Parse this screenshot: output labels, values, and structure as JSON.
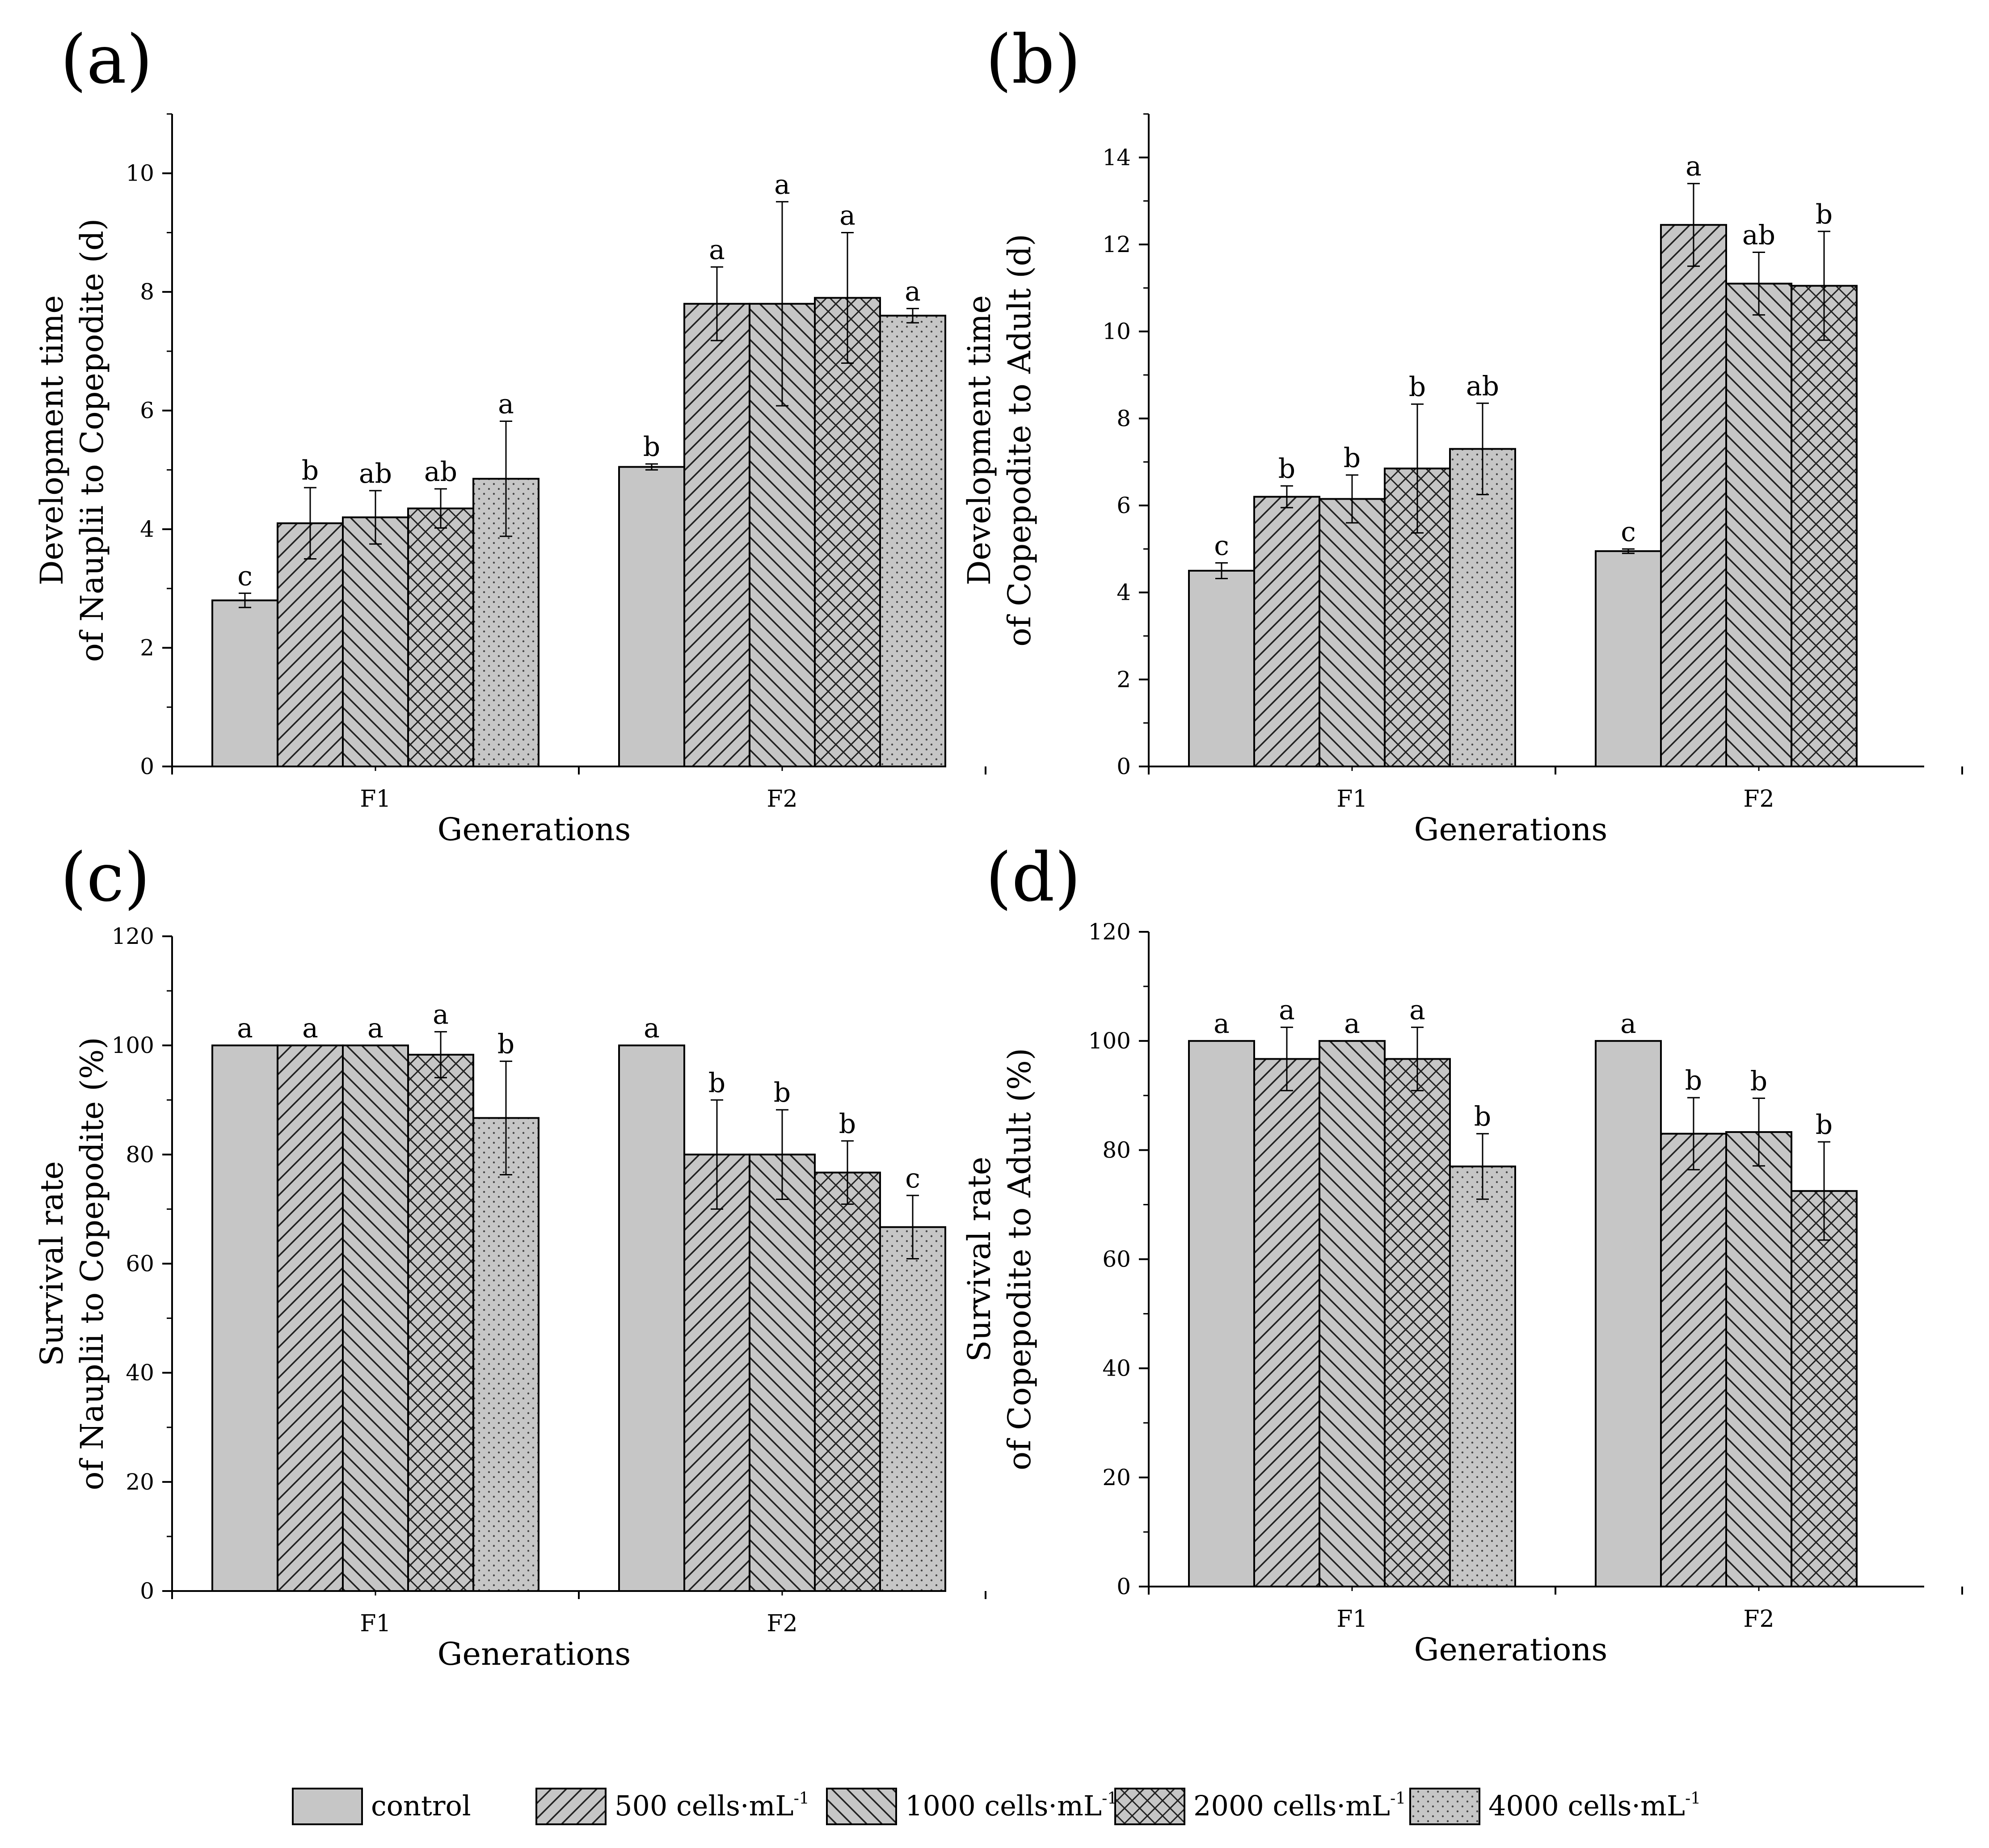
{
  "figure": {
    "legend": [
      {
        "key": "control",
        "label": "control",
        "sup": ""
      },
      {
        "key": "c500",
        "label": "500 cells·mL",
        "sup": "-1"
      },
      {
        "key": "c1000",
        "label": "1000 cells·mL",
        "sup": "-1"
      },
      {
        "key": "c2000",
        "label": "2000 cells·mL",
        "sup": "-1"
      },
      {
        "key": "c4000",
        "label": "4000 cells·mL",
        "sup": "-1"
      }
    ]
  },
  "chart_data": [
    {
      "panel": "(a)",
      "type": "bar",
      "title": "",
      "xlabel": "Generations",
      "ylabel": [
        "Development time",
        "of Nauplii to Copepodite (d)"
      ],
      "ylim": [
        0,
        11
      ],
      "yticks": [
        0,
        2,
        4,
        6,
        8,
        10
      ],
      "categories": [
        "F1",
        "F2"
      ],
      "series": [
        {
          "name": "control",
          "pattern": "solid",
          "values": [
            2.8,
            5.05
          ],
          "errors": [
            0.12,
            0.05
          ],
          "labels": [
            "c",
            "b"
          ]
        },
        {
          "name": "500 cells·mL-1",
          "pattern": "diag-right",
          "values": [
            4.1,
            7.8
          ],
          "errors": [
            0.6,
            0.62
          ],
          "labels": [
            "b",
            "a"
          ]
        },
        {
          "name": "1000 cells·mL-1",
          "pattern": "diag-left",
          "values": [
            4.2,
            7.8
          ],
          "errors": [
            0.45,
            1.72
          ],
          "labels": [
            "ab",
            "a"
          ]
        },
        {
          "name": "2000 cells·mL-1",
          "pattern": "crosshatch",
          "values": [
            4.35,
            7.9
          ],
          "errors": [
            0.33,
            1.1
          ],
          "labels": [
            "ab",
            "a"
          ]
        },
        {
          "name": "4000 cells·mL-1",
          "pattern": "dots",
          "values": [
            4.85,
            7.6
          ],
          "errors": [
            0.97,
            0.12
          ],
          "labels": [
            "a",
            "a"
          ]
        }
      ]
    },
    {
      "panel": "(b)",
      "type": "bar",
      "title": "",
      "xlabel": "Generations",
      "ylabel": [
        "Development time",
        "of Copepodite to Adult (d)"
      ],
      "ylim": [
        0,
        15
      ],
      "yticks": [
        0,
        2,
        4,
        6,
        8,
        10,
        12,
        14
      ],
      "categories": [
        "F1",
        "F2"
      ],
      "series": [
        {
          "name": "control",
          "pattern": "solid",
          "values": [
            4.5,
            4.95
          ],
          "errors": [
            0.18,
            0.05
          ],
          "labels": [
            "c",
            "c"
          ]
        },
        {
          "name": "500 cells·mL-1",
          "pattern": "diag-right",
          "values": [
            6.2,
            12.45
          ],
          "errors": [
            0.25,
            0.95
          ],
          "labels": [
            "b",
            "a"
          ]
        },
        {
          "name": "1000 cells·mL-1",
          "pattern": "diag-left",
          "values": [
            6.15,
            11.1
          ],
          "errors": [
            0.55,
            0.72
          ],
          "labels": [
            "b",
            "ab"
          ]
        },
        {
          "name": "2000 cells·mL-1",
          "pattern": "crosshatch",
          "values": [
            6.85,
            11.05
          ],
          "errors": [
            1.48,
            1.25
          ],
          "labels": [
            "b",
            "b"
          ]
        },
        {
          "name": "4000 cells·mL-1",
          "pattern": "dots",
          "values": [
            7.3,
            null
          ],
          "errors": [
            1.05,
            null
          ],
          "labels": [
            "ab",
            ""
          ]
        }
      ]
    },
    {
      "panel": "(c)",
      "type": "bar",
      "title": "",
      "xlabel": "Generations",
      "ylabel": [
        "Survival rate",
        "of Nauplii to Copepodite (%)"
      ],
      "ylim": [
        0,
        120
      ],
      "yticks": [
        0,
        20,
        40,
        60,
        80,
        100,
        120
      ],
      "categories": [
        "F1",
        "F2"
      ],
      "series": [
        {
          "name": "control",
          "pattern": "solid",
          "values": [
            100,
            100
          ],
          "errors": [
            0,
            0
          ],
          "labels": [
            "a",
            "a"
          ]
        },
        {
          "name": "500 cells·mL-1",
          "pattern": "diag-right",
          "values": [
            100,
            80
          ],
          "errors": [
            0,
            10
          ],
          "labels": [
            "a",
            "b"
          ]
        },
        {
          "name": "1000 cells·mL-1",
          "pattern": "diag-left",
          "values": [
            100,
            80
          ],
          "errors": [
            0,
            8.2
          ],
          "labels": [
            "a",
            "b"
          ]
        },
        {
          "name": "2000 cells·mL-1",
          "pattern": "crosshatch",
          "values": [
            98.3,
            76.7
          ],
          "errors": [
            4.2,
            5.8
          ],
          "labels": [
            "a",
            "b"
          ]
        },
        {
          "name": "4000 cells·mL-1",
          "pattern": "dots",
          "values": [
            86.7,
            66.7
          ],
          "errors": [
            10.4,
            5.8
          ],
          "labels": [
            "b",
            "c"
          ]
        }
      ]
    },
    {
      "panel": "(d)",
      "type": "bar",
      "title": "",
      "xlabel": "Generations",
      "ylabel": [
        "Survival rate",
        "of Copepodite to Adult (%)"
      ],
      "ylim": [
        0,
        120
      ],
      "yticks": [
        0,
        20,
        40,
        60,
        80,
        100,
        120
      ],
      "categories": [
        "F1",
        "F2"
      ],
      "series": [
        {
          "name": "control",
          "pattern": "solid",
          "values": [
            100,
            100
          ],
          "errors": [
            0,
            0
          ],
          "labels": [
            "a",
            "a"
          ]
        },
        {
          "name": "500 cells·mL-1",
          "pattern": "diag-right",
          "values": [
            96.7,
            83
          ],
          "errors": [
            5.8,
            6.6
          ],
          "labels": [
            "a",
            "b"
          ]
        },
        {
          "name": "1000 cells·mL-1",
          "pattern": "diag-left",
          "values": [
            100,
            83.3
          ],
          "errors": [
            0,
            6.2
          ],
          "labels": [
            "a",
            "b"
          ]
        },
        {
          "name": "2000 cells·mL-1",
          "pattern": "crosshatch",
          "values": [
            96.7,
            72.5
          ],
          "errors": [
            5.8,
            9
          ],
          "labels": [
            "a",
            "b"
          ]
        },
        {
          "name": "4000 cells·mL-1",
          "pattern": "dots",
          "values": [
            77,
            null
          ],
          "errors": [
            6,
            null
          ],
          "labels": [
            "b",
            ""
          ]
        }
      ]
    }
  ]
}
